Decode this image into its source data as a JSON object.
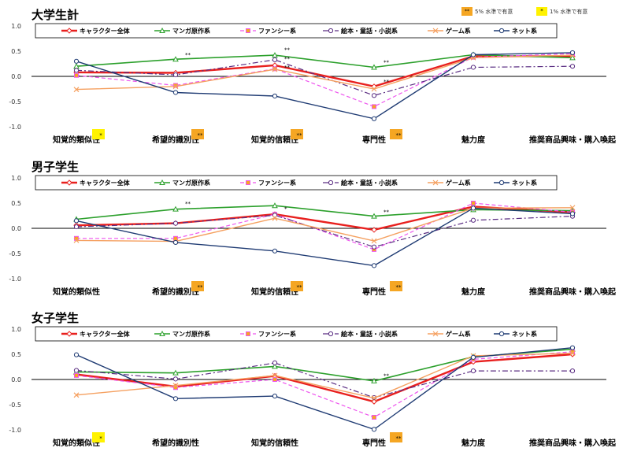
{
  "global_legend": [
    {
      "marker": "**",
      "label": "5% 水準で有意",
      "color": "#f5a623"
    },
    {
      "marker": "*",
      "label": "1% 水準で有意",
      "color": "#fff200"
    }
  ],
  "series_styles": [
    {
      "color": "#e8201e",
      "width": 2.4,
      "dash": "",
      "marker": "diamond"
    },
    {
      "color": "#2ca02c",
      "width": 1.6,
      "dash": "",
      "marker": "triangle"
    },
    {
      "color": "#ee55ee",
      "width": 1.2,
      "dash": "5,3",
      "marker": "square"
    },
    {
      "color": "#5a2d82",
      "width": 1.2,
      "dash": "7,3,2,3",
      "marker": "circle"
    },
    {
      "color": "#f5a060",
      "width": 1.4,
      "dash": "",
      "marker": "x"
    },
    {
      "color": "#1f3b73",
      "width": 1.4,
      "dash": "",
      "marker": "circle"
    }
  ],
  "chart_data": [
    {
      "type": "line",
      "title": "大学生計",
      "categories": [
        "知覚的類似性",
        "希望的識別性",
        "知覚的信頼性",
        "専門性",
        "魅力度",
        "推奨商品興味・購入喚起"
      ],
      "ylim": [
        -1.0,
        1.0
      ],
      "yticks": [
        "1.0",
        "0.5",
        "0.0",
        "-0.5",
        "-1.0"
      ],
      "series": [
        {
          "name": "キャラクター全体",
          "values": [
            0.08,
            0.07,
            0.22,
            -0.2,
            0.4,
            0.4
          ]
        },
        {
          "name": "マンガ原作系",
          "values": [
            0.2,
            0.34,
            0.42,
            0.18,
            0.43,
            0.37
          ]
        },
        {
          "name": "ファンシー系",
          "values": [
            0.02,
            -0.18,
            0.15,
            -0.6,
            0.38,
            0.45
          ]
        },
        {
          "name": "絵本・童話・小説系",
          "values": [
            0.12,
            0.03,
            0.33,
            -0.38,
            0.18,
            0.2
          ]
        },
        {
          "name": "ゲーム系",
          "values": [
            -0.26,
            -0.2,
            0.14,
            -0.25,
            0.37,
            0.42
          ]
        },
        {
          "name": "ネット系",
          "values": [
            0.3,
            -0.32,
            -0.39,
            -0.84,
            0.43,
            0.47
          ]
        }
      ],
      "sig_marks": [
        {
          "category": 0,
          "text": "*",
          "color": "#fff200"
        },
        {
          "category": 1,
          "text": "**",
          "color": "#f5a623"
        },
        {
          "category": 2,
          "text": "**",
          "color": "#f5a623"
        },
        {
          "category": 3,
          "text": "**",
          "color": "#f5a623"
        }
      ],
      "annotations": [
        {
          "category": 1,
          "value": 0.39,
          "text": "**"
        },
        {
          "category": 2,
          "value": 0.49,
          "text": "**"
        },
        {
          "category": 2,
          "value": 0.31,
          "text": "**"
        },
        {
          "category": 2,
          "value": 0.14,
          "text": "**"
        },
        {
          "category": 3,
          "value": 0.24,
          "text": "**"
        },
        {
          "category": 3,
          "value": -0.14,
          "text": "**"
        }
      ]
    },
    {
      "type": "line",
      "title": "男子学生",
      "categories": [
        "知覚的類似性",
        "希望的識別性",
        "知覚的信頼性",
        "専門性",
        "魅力度",
        "推奨商品興味・購入喚起"
      ],
      "ylim": [
        -1.0,
        1.0
      ],
      "yticks": [
        "1.0",
        "0.5",
        "0.0",
        "-0.5",
        "-1.0"
      ],
      "series": [
        {
          "name": "キャラクター全体",
          "values": [
            0.06,
            0.1,
            0.28,
            -0.03,
            0.43,
            0.32
          ]
        },
        {
          "name": "マンガ原作系",
          "values": [
            0.18,
            0.38,
            0.45,
            0.24,
            0.37,
            0.35
          ]
        },
        {
          "name": "ファンシー系",
          "values": [
            -0.2,
            -0.2,
            0.28,
            -0.42,
            0.5,
            0.32
          ]
        },
        {
          "name": "絵本・童話・小説系",
          "values": [
            0.03,
            0.1,
            0.26,
            -0.37,
            0.16,
            0.24
          ]
        },
        {
          "name": "ゲーム系",
          "values": [
            -0.24,
            -0.26,
            0.2,
            -0.25,
            0.4,
            0.41
          ]
        },
        {
          "name": "ネット系",
          "values": [
            0.15,
            -0.28,
            -0.45,
            -0.74,
            0.4,
            0.29
          ]
        }
      ],
      "sig_marks": [
        {
          "category": 1,
          "text": "**",
          "color": "#f5a623"
        },
        {
          "category": 2,
          "text": "**",
          "color": "#f5a623"
        },
        {
          "category": 3,
          "text": "**",
          "color": "#f5a623"
        }
      ],
      "annotations": [
        {
          "category": 1,
          "value": 0.45,
          "text": "**"
        },
        {
          "category": 2,
          "value": 0.35,
          "text": "*"
        },
        {
          "category": 3,
          "value": 0.29,
          "text": "**"
        }
      ]
    },
    {
      "type": "line",
      "title": "女子学生",
      "categories": [
        "知覚的類似性",
        "希望的識別性",
        "知覚的信頼性",
        "専門性",
        "魅力度",
        "推奨商品興味・購入喚起"
      ],
      "ylim": [
        -1.0,
        1.0
      ],
      "yticks": [
        "1.0",
        "0.5",
        "0.0",
        "-0.5",
        "-1.0"
      ],
      "series": [
        {
          "name": "キャラクター全体",
          "values": [
            0.1,
            -0.14,
            0.07,
            -0.44,
            0.35,
            0.5
          ]
        },
        {
          "name": "マンガ原作系",
          "values": [
            0.15,
            0.13,
            0.26,
            -0.03,
            0.45,
            0.6
          ]
        },
        {
          "name": "ファンシー系",
          "values": [
            0.08,
            -0.16,
            0.0,
            -0.75,
            0.4,
            0.55
          ]
        },
        {
          "name": "絵本・童話・小説系",
          "values": [
            0.18,
            0.01,
            0.33,
            -0.36,
            0.17,
            0.17
          ]
        },
        {
          "name": "ゲーム系",
          "values": [
            -0.31,
            -0.12,
            0.08,
            -0.37,
            0.47,
            0.52
          ]
        },
        {
          "name": "ネット系",
          "values": [
            0.49,
            -0.38,
            -0.33,
            -0.99,
            0.44,
            0.63
          ]
        }
      ],
      "sig_marks": [
        {
          "category": 0,
          "text": "*",
          "color": "#fff200"
        },
        {
          "category": 3,
          "text": "**",
          "color": "#f5a623"
        }
      ],
      "annotations": [
        {
          "category": 3,
          "value": 0.04,
          "text": "**"
        }
      ]
    }
  ]
}
